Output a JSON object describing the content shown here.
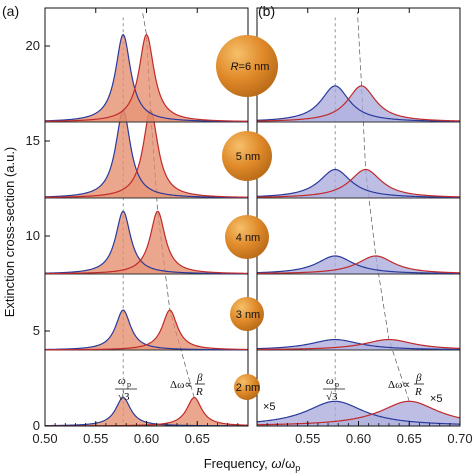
{
  "chart_data": [
    {
      "panel": "(a)",
      "type": "area",
      "xlabel": "Frequency, ω / ω_p",
      "ylabel": "Extinction cross-section (a.u.)",
      "xlim": [
        0.5,
        0.7
      ],
      "ylim": [
        0,
        22
      ],
      "xticks": [
        "0.50",
        "0.55",
        "0.60",
        "0.65"
      ],
      "yticks": [
        "0",
        "5",
        "10",
        "15",
        "20"
      ],
      "series": [
        {
          "size": "2 nm",
          "baseline": 0,
          "peaks": [
            {
              "x": 0.577,
              "height": 1.5,
              "hwhm": 0.009
            },
            {
              "x": 0.647,
              "height": 1.5,
              "hwhm": 0.009
            }
          ]
        },
        {
          "size": "3 nm",
          "baseline": 4,
          "peaks": [
            {
              "x": 0.577,
              "height": 2.1,
              "hwhm": 0.009
            },
            {
              "x": 0.623,
              "height": 2.1,
              "hwhm": 0.009
            }
          ]
        },
        {
          "size": "4 nm",
          "baseline": 8,
          "peaks": [
            {
              "x": 0.577,
              "height": 3.3,
              "hwhm": 0.009
            },
            {
              "x": 0.611,
              "height": 3.3,
              "hwhm": 0.009
            }
          ]
        },
        {
          "size": "5 nm",
          "baseline": 12,
          "peaks": [
            {
              "x": 0.577,
              "height": 4.6,
              "hwhm": 0.009
            },
            {
              "x": 0.604,
              "height": 4.6,
              "hwhm": 0.009
            }
          ]
        },
        {
          "size": "R=6 nm",
          "baseline": 16,
          "peaks": [
            {
              "x": 0.577,
              "height": 4.6,
              "hwhm": 0.009
            },
            {
              "x": 0.6,
              "height": 4.6,
              "hwhm": 0.009
            }
          ]
        }
      ],
      "annotations": [
        "ω_p/√3",
        "Δω∝ β/R"
      ]
    },
    {
      "panel": "(b)",
      "type": "area",
      "xlabel": "Frequency, ω / ω_p",
      "xlim": [
        0.5,
        0.7
      ],
      "ylim": [
        0,
        22
      ],
      "xticks": [
        "0.55",
        "0.60",
        "0.65",
        "0.70"
      ],
      "series": [
        {
          "size": "2 nm",
          "baseline": 0,
          "multiplier": "×5",
          "peaks": [
            {
              "x": 0.577,
              "height": 1.3,
              "hwhm": 0.035
            },
            {
              "x": 0.65,
              "height": 1.3,
              "hwhm": 0.035
            }
          ]
        },
        {
          "size": "3 nm",
          "baseline": 4,
          "peaks": [
            {
              "x": 0.577,
              "height": 0.55,
              "hwhm": 0.03
            },
            {
              "x": 0.63,
              "height": 0.55,
              "hwhm": 0.03
            }
          ]
        },
        {
          "size": "4 nm",
          "baseline": 8,
          "peaks": [
            {
              "x": 0.577,
              "height": 0.95,
              "hwhm": 0.022
            },
            {
              "x": 0.617,
              "height": 0.95,
              "hwhm": 0.022
            }
          ]
        },
        {
          "size": "5 nm",
          "baseline": 12,
          "peaks": [
            {
              "x": 0.577,
              "height": 1.5,
              "hwhm": 0.019
            },
            {
              "x": 0.607,
              "height": 1.5,
              "hwhm": 0.019
            }
          ]
        },
        {
          "size": "R=6 nm",
          "baseline": 16,
          "peaks": [
            {
              "x": 0.577,
              "height": 1.9,
              "hwhm": 0.017
            },
            {
              "x": 0.603,
              "height": 1.9,
              "hwhm": 0.017
            }
          ]
        }
      ],
      "annotations": [
        "ω_p/√3",
        "Δω∝ β/R",
        "×5",
        "×5"
      ]
    }
  ],
  "labels": {
    "panel_a": "(a)",
    "panel_b": "(b)",
    "ylabel": "Extinction cross-section (a.u.)",
    "xlabel_main": "Frequency,",
    "xlabel_omega": "ω",
    "xlabel_over": "/ω",
    "xlabel_sub": "p",
    "ann_omega": "ω",
    "ann_p": "p",
    "ann_sqrt": "√3",
    "ann_delta": "Δω∝",
    "ann_beta": "β",
    "ann_R": "R",
    "times5_left": "×5",
    "times5_right": "×5"
  },
  "spheres": [
    {
      "label": "R=6 nm",
      "label_main": "=6 nm",
      "label_italic": "R"
    },
    {
      "label": "5 nm"
    },
    {
      "label": "4 nm"
    },
    {
      "label": "3 nm"
    },
    {
      "label": "2 nm"
    }
  ],
  "colors": {
    "fill_a": "#e48a68",
    "fill_b": "#a9a9dc",
    "curve_blue": "#2a3a9c",
    "curve_red": "#c02a2a",
    "sphere": "#e08a2a"
  }
}
